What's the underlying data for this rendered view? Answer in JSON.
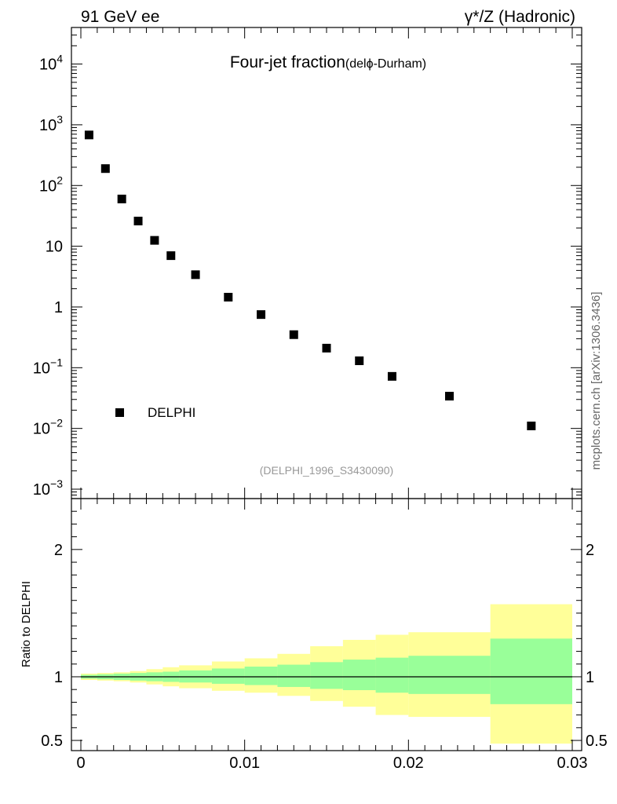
{
  "header": {
    "left": "91 GeV ee",
    "right": "γ*/Z (Hadronic)"
  },
  "side_label": "mcplots.cern.ch [arXiv:1306.3436]",
  "chart_data": [
    {
      "type": "scatter",
      "title": "Four-jet fraction",
      "subtitle": "(delϕ-Durham)",
      "reference": "(DELPHI_1996_S3430090)",
      "xlim": [
        0,
        0.03
      ],
      "yscale": "log",
      "ylim": [
        0.0007,
        40000
      ],
      "ytick_values": [
        0.001,
        0.01,
        0.1,
        1,
        10,
        100,
        1000,
        10000
      ],
      "ytick_labels": [
        {
          "base": "10",
          "exp": "−3"
        },
        {
          "base": "10",
          "exp": "−2"
        },
        {
          "base": "10",
          "exp": "−1"
        },
        {
          "base": "1",
          "exp": ""
        },
        {
          "base": "10",
          "exp": ""
        },
        {
          "base": "10",
          "exp": "2"
        },
        {
          "base": "10",
          "exp": "3"
        },
        {
          "base": "10",
          "exp": "4"
        }
      ],
      "legend": {
        "label": "DELPHI",
        "position": "bottom-left"
      },
      "series": [
        {
          "name": "DELPHI",
          "x": [
            0.0005,
            0.0015,
            0.0025,
            0.0035,
            0.0045,
            0.0055,
            0.007,
            0.009,
            0.011,
            0.013,
            0.015,
            0.017,
            0.019,
            0.0225,
            0.0275
          ],
          "y": [
            680,
            190,
            60,
            26,
            12.5,
            7,
            3.4,
            1.45,
            0.75,
            0.35,
            0.21,
            0.13,
            0.072,
            0.034,
            0.011
          ]
        }
      ]
    },
    {
      "type": "area",
      "ylabel": "Ratio to DELPHI",
      "xlim": [
        0,
        0.03
      ],
      "ylim": [
        0.42,
        2.4
      ],
      "xtick_values": [
        0,
        0.01,
        0.02,
        0.03
      ],
      "xtick_labels": [
        "0",
        "0.01",
        "0.02",
        "0.03"
      ],
      "ytick_values": [
        0.5,
        1,
        2
      ],
      "ytick_labels": [
        "0.5",
        "1",
        "2"
      ],
      "reference_line": 1,
      "bins": [
        {
          "x0": 0.0,
          "x1": 0.001,
          "stat_lo": 0.985,
          "stat_hi": 1.015,
          "tot_lo": 0.975,
          "tot_hi": 1.025
        },
        {
          "x0": 0.001,
          "x1": 0.002,
          "stat_lo": 0.98,
          "stat_hi": 1.02,
          "tot_lo": 0.97,
          "tot_hi": 1.03
        },
        {
          "x0": 0.002,
          "x1": 0.003,
          "stat_lo": 0.975,
          "stat_hi": 1.025,
          "tot_lo": 0.965,
          "tot_hi": 1.035
        },
        {
          "x0": 0.003,
          "x1": 0.004,
          "stat_lo": 0.97,
          "stat_hi": 1.03,
          "tot_lo": 0.955,
          "tot_hi": 1.045
        },
        {
          "x0": 0.004,
          "x1": 0.005,
          "stat_lo": 0.965,
          "stat_hi": 1.035,
          "tot_lo": 0.94,
          "tot_hi": 1.06
        },
        {
          "x0": 0.005,
          "x1": 0.006,
          "stat_lo": 0.96,
          "stat_hi": 1.04,
          "tot_lo": 0.925,
          "tot_hi": 1.075
        },
        {
          "x0": 0.006,
          "x1": 0.008,
          "stat_lo": 0.955,
          "stat_hi": 1.05,
          "tot_lo": 0.91,
          "tot_hi": 1.09
        },
        {
          "x0": 0.008,
          "x1": 0.01,
          "stat_lo": 0.945,
          "stat_hi": 1.065,
          "tot_lo": 0.89,
          "tot_hi": 1.12
        },
        {
          "x0": 0.01,
          "x1": 0.012,
          "stat_lo": 0.935,
          "stat_hi": 1.08,
          "tot_lo": 0.875,
          "tot_hi": 1.145
        },
        {
          "x0": 0.012,
          "x1": 0.014,
          "stat_lo": 0.92,
          "stat_hi": 1.095,
          "tot_lo": 0.85,
          "tot_hi": 1.18
        },
        {
          "x0": 0.014,
          "x1": 0.016,
          "stat_lo": 0.905,
          "stat_hi": 1.115,
          "tot_lo": 0.81,
          "tot_hi": 1.24
        },
        {
          "x0": 0.016,
          "x1": 0.018,
          "stat_lo": 0.895,
          "stat_hi": 1.135,
          "tot_lo": 0.765,
          "tot_hi": 1.29
        },
        {
          "x0": 0.018,
          "x1": 0.02,
          "stat_lo": 0.875,
          "stat_hi": 1.15,
          "tot_lo": 0.7,
          "tot_hi": 1.33
        },
        {
          "x0": 0.02,
          "x1": 0.025,
          "stat_lo": 0.865,
          "stat_hi": 1.165,
          "tot_lo": 0.685,
          "tot_hi": 1.35
        },
        {
          "x0": 0.025,
          "x1": 0.03,
          "stat_lo": 0.785,
          "stat_hi": 1.3,
          "tot_lo": 0.475,
          "tot_hi": 1.57
        }
      ]
    }
  ],
  "colors": {
    "stat_band": "#99ff99",
    "total_band": "#ffff99",
    "markers": "#000000",
    "reference_text": "#999999",
    "side_text": "#666666"
  }
}
